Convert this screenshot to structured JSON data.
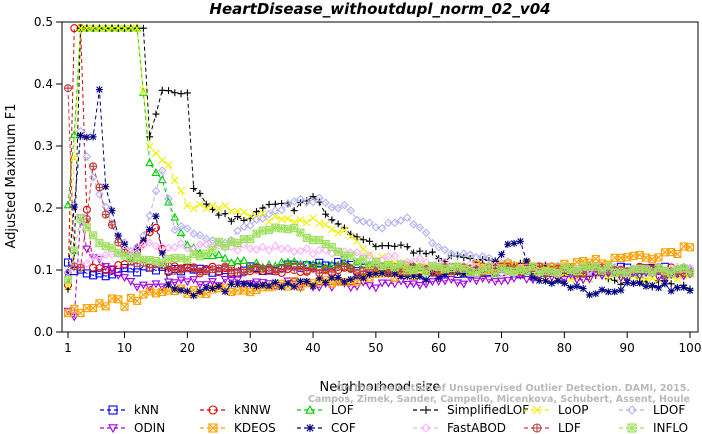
{
  "chart_data": {
    "type": "line",
    "title": "HeartDisease_withoutdupl_norm_02_v04",
    "xlabel": "Neighborhood size",
    "ylabel": "Adjusted Maximum F1",
    "xlim": [
      0,
      100
    ],
    "ylim": [
      0,
      0.5
    ],
    "xticks": [
      1,
      10,
      20,
      30,
      40,
      50,
      60,
      70,
      80,
      90,
      100
    ],
    "yticks": [
      0.0,
      0.1,
      0.2,
      0.3,
      0.4,
      0.5
    ],
    "xtick_labels": [
      "1",
      "10",
      "20",
      "30",
      "40",
      "50",
      "60",
      "70",
      "80",
      "90",
      "100"
    ],
    "ytick_labels": [
      "0.0",
      "0.1",
      "0.2",
      "0.3",
      "0.4",
      "0.5"
    ],
    "grid": false,
    "legend_position": "bottom",
    "watermark": [
      "Campos, Zimek, Sander, Campello, Micenkova, Schubert, Assent, Houle",
      "On the Evaluation of Unsupervised Outlier Detection. DAMI, 2015."
    ],
    "series": [
      {
        "name": "kNN",
        "color": "#0000ff",
        "marker": "square",
        "anchors": [
          [
            1,
            0.107
          ],
          [
            3,
            0.1
          ],
          [
            5,
            0.092
          ],
          [
            8,
            0.095
          ],
          [
            12,
            0.1
          ],
          [
            20,
            0.1
          ],
          [
            30,
            0.1
          ],
          [
            40,
            0.105
          ],
          [
            45,
            0.112
          ],
          [
            50,
            0.105
          ],
          [
            60,
            0.1
          ],
          [
            70,
            0.098
          ],
          [
            80,
            0.1
          ],
          [
            90,
            0.1
          ],
          [
            100,
            0.1
          ]
        ]
      },
      {
        "name": "kNNW",
        "color": "#e00000",
        "marker": "circle",
        "anchors": [
          [
            1,
            0.073
          ],
          [
            2,
            0.49
          ],
          [
            3,
            0.49
          ],
          [
            4,
            0.2
          ],
          [
            5,
            0.1
          ],
          [
            8,
            0.1
          ],
          [
            12,
            0.13
          ],
          [
            15,
            0.17
          ],
          [
            17,
            0.1
          ],
          [
            25,
            0.1
          ],
          [
            40,
            0.1
          ],
          [
            60,
            0.1
          ],
          [
            80,
            0.1
          ],
          [
            100,
            0.1
          ]
        ]
      },
      {
        "name": "LOF",
        "color": "#00d000",
        "marker": "triangle",
        "anchors": [
          [
            1,
            0.21
          ],
          [
            2,
            0.32
          ],
          [
            3,
            0.49
          ],
          [
            12,
            0.49
          ],
          [
            13,
            0.39
          ],
          [
            14,
            0.27
          ],
          [
            16,
            0.24
          ],
          [
            18,
            0.18
          ],
          [
            20,
            0.14
          ],
          [
            25,
            0.12
          ],
          [
            30,
            0.11
          ],
          [
            40,
            0.11
          ],
          [
            50,
            0.105
          ],
          [
            60,
            0.1
          ],
          [
            70,
            0.1
          ],
          [
            80,
            0.1
          ],
          [
            90,
            0.095
          ],
          [
            100,
            0.1
          ]
        ]
      },
      {
        "name": "SimplifiedLOF",
        "color": "#000000",
        "marker": "plus",
        "anchors": [
          [
            1,
            0.07
          ],
          [
            2,
            0.13
          ],
          [
            3,
            0.49
          ],
          [
            13,
            0.49
          ],
          [
            14,
            0.32
          ],
          [
            16,
            0.39
          ],
          [
            20,
            0.39
          ],
          [
            21,
            0.23
          ],
          [
            23,
            0.21
          ],
          [
            26,
            0.185
          ],
          [
            30,
            0.18
          ],
          [
            33,
            0.21
          ],
          [
            37,
            0.2
          ],
          [
            40,
            0.22
          ],
          [
            42,
            0.195
          ],
          [
            46,
            0.16
          ],
          [
            50,
            0.14
          ],
          [
            55,
            0.135
          ],
          [
            60,
            0.12
          ],
          [
            70,
            0.11
          ],
          [
            80,
            0.1
          ],
          [
            90,
            0.08
          ],
          [
            100,
            0.075
          ]
        ]
      },
      {
        "name": "LoOP",
        "color": "#f0f000",
        "marker": "x",
        "anchors": [
          [
            1,
            0.07
          ],
          [
            3,
            0.49
          ],
          [
            12,
            0.49
          ],
          [
            14,
            0.3
          ],
          [
            17,
            0.27
          ],
          [
            20,
            0.2
          ],
          [
            25,
            0.2
          ],
          [
            30,
            0.19
          ],
          [
            35,
            0.18
          ],
          [
            40,
            0.18
          ],
          [
            45,
            0.16
          ],
          [
            50,
            0.12
          ],
          [
            60,
            0.1
          ],
          [
            70,
            0.1
          ],
          [
            80,
            0.09
          ],
          [
            90,
            0.09
          ],
          [
            100,
            0.09
          ]
        ]
      },
      {
        "name": "LDOF",
        "color": "#b0b0f0",
        "marker": "diamond",
        "anchors": [
          [
            1,
            0.1
          ],
          [
            3,
            0.32
          ],
          [
            6,
            0.22
          ],
          [
            9,
            0.15
          ],
          [
            12,
            0.12
          ],
          [
            16,
            0.26
          ],
          [
            18,
            0.17
          ],
          [
            25,
            0.14
          ],
          [
            35,
            0.2
          ],
          [
            40,
            0.215
          ],
          [
            45,
            0.2
          ],
          [
            50,
            0.165
          ],
          [
            55,
            0.185
          ],
          [
            60,
            0.14
          ],
          [
            65,
            0.12
          ],
          [
            70,
            0.11
          ],
          [
            80,
            0.1
          ],
          [
            90,
            0.1
          ],
          [
            100,
            0.1
          ]
        ]
      },
      {
        "name": "ODIN",
        "color": "#a000e0",
        "marker": "triangle-down",
        "anchors": [
          [
            1,
            0.03
          ],
          [
            2,
            0.03
          ],
          [
            3,
            0.19
          ],
          [
            4,
            0.13
          ],
          [
            6,
            0.12
          ],
          [
            8,
            0.1
          ],
          [
            12,
            0.07
          ],
          [
            20,
            0.08
          ],
          [
            30,
            0.08
          ],
          [
            40,
            0.075
          ],
          [
            50,
            0.075
          ],
          [
            60,
            0.08
          ],
          [
            70,
            0.085
          ],
          [
            80,
            0.09
          ],
          [
            90,
            0.09
          ],
          [
            100,
            0.09
          ]
        ]
      },
      {
        "name": "KDEOS",
        "color": "#ffa000",
        "marker": "square-x",
        "anchors": [
          [
            1,
            0.035
          ],
          [
            3,
            0.03
          ],
          [
            5,
            0.04
          ],
          [
            8,
            0.05
          ],
          [
            10,
            0.045
          ],
          [
            13,
            0.06
          ],
          [
            20,
            0.065
          ],
          [
            30,
            0.07
          ],
          [
            40,
            0.08
          ],
          [
            50,
            0.09
          ],
          [
            60,
            0.1
          ],
          [
            70,
            0.105
          ],
          [
            80,
            0.11
          ],
          [
            90,
            0.115
          ],
          [
            95,
            0.125
          ],
          [
            100,
            0.135
          ]
        ]
      },
      {
        "name": "COF",
        "color": "#000080",
        "marker": "star",
        "anchors": [
          [
            1,
            0.09
          ],
          [
            3,
            0.32
          ],
          [
            5,
            0.32
          ],
          [
            6,
            0.39
          ],
          [
            7,
            0.23
          ],
          [
            9,
            0.16
          ],
          [
            11,
            0.12
          ],
          [
            15,
            0.185
          ],
          [
            17,
            0.07
          ],
          [
            20,
            0.06
          ],
          [
            25,
            0.07
          ],
          [
            30,
            0.075
          ],
          [
            40,
            0.08
          ],
          [
            50,
            0.09
          ],
          [
            60,
            0.09
          ],
          [
            68,
            0.1
          ],
          [
            71,
            0.14
          ],
          [
            73,
            0.15
          ],
          [
            75,
            0.09
          ],
          [
            80,
            0.08
          ],
          [
            85,
            0.06
          ],
          [
            90,
            0.075
          ],
          [
            100,
            0.07
          ]
        ]
      },
      {
        "name": "FastABOD",
        "color": "#ffb0ff",
        "marker": "diamond",
        "anchors": [
          [
            1,
            0.1
          ],
          [
            5,
            0.12
          ],
          [
            10,
            0.13
          ],
          [
            15,
            0.14
          ],
          [
            20,
            0.14
          ],
          [
            30,
            0.135
          ],
          [
            40,
            0.13
          ],
          [
            50,
            0.12
          ],
          [
            60,
            0.11
          ],
          [
            70,
            0.1
          ],
          [
            80,
            0.1
          ],
          [
            90,
            0.1
          ],
          [
            100,
            0.1
          ]
        ]
      },
      {
        "name": "LDF",
        "color": "#c04040",
        "marker": "circle-plus",
        "anchors": [
          [
            1,
            0.39
          ],
          [
            2,
            0.1
          ],
          [
            3,
            0.1
          ],
          [
            5,
            0.27
          ],
          [
            7,
            0.19
          ],
          [
            9,
            0.15
          ],
          [
            11,
            0.11
          ],
          [
            20,
            0.1
          ],
          [
            30,
            0.1
          ],
          [
            50,
            0.1
          ],
          [
            60,
            0.1
          ],
          [
            70,
            0.1
          ],
          [
            80,
            0.1
          ],
          [
            90,
            0.1
          ],
          [
            100,
            0.1
          ]
        ]
      },
      {
        "name": "INFLO",
        "color": "#a0e060",
        "marker": "star-box",
        "anchors": [
          [
            1,
            0.09
          ],
          [
            3,
            0.18
          ],
          [
            5,
            0.15
          ],
          [
            8,
            0.13
          ],
          [
            11,
            0.12
          ],
          [
            15,
            0.11
          ],
          [
            20,
            0.12
          ],
          [
            25,
            0.14
          ],
          [
            30,
            0.15
          ],
          [
            35,
            0.17
          ],
          [
            38,
            0.16
          ],
          [
            45,
            0.12
          ],
          [
            50,
            0.11
          ],
          [
            60,
            0.1
          ],
          [
            70,
            0.1
          ],
          [
            80,
            0.1
          ],
          [
            90,
            0.1
          ],
          [
            100,
            0.1
          ]
        ]
      }
    ]
  }
}
